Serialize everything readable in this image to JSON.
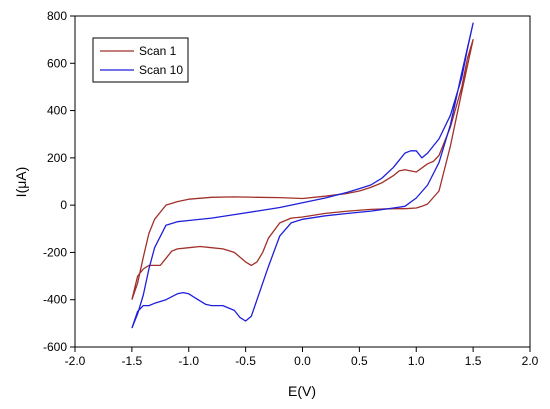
{
  "chart_data": {
    "type": "line",
    "title": "",
    "xlabel": "E(V)",
    "ylabel": "I(μA)",
    "xlim": [
      -2.0,
      2.0
    ],
    "ylim": [
      -600,
      800
    ],
    "x_ticks": [
      -2.0,
      -1.5,
      -1.0,
      -0.5,
      0.0,
      0.5,
      1.0,
      1.5,
      2.0
    ],
    "x_tick_labels": [
      "-2.0",
      "-1.5",
      "-1.0",
      "-0.5",
      "0.0",
      "0.5",
      "1.0",
      "1.5",
      "2.0"
    ],
    "y_ticks": [
      -600,
      -400,
      -200,
      0,
      200,
      400,
      600,
      800
    ],
    "y_tick_labels": [
      "-600",
      "-400",
      "-200",
      "0",
      "200",
      "400",
      "600",
      "800"
    ],
    "grid": false,
    "legend_position": "top-left",
    "series": [
      {
        "name": "Scan 1",
        "color": "#a0302a",
        "x": [
          -1.5,
          -1.45,
          -1.4,
          -1.35,
          -1.3,
          -1.25,
          -1.2,
          -1.15,
          -1.1,
          -1.0,
          -0.9,
          -0.8,
          -0.7,
          -0.6,
          -0.5,
          -0.45,
          -0.4,
          -0.35,
          -0.3,
          -0.2,
          -0.1,
          0.0,
          0.2,
          0.4,
          0.6,
          0.8,
          0.9,
          1.0,
          1.05,
          1.1,
          1.2,
          1.3,
          1.4,
          1.5,
          1.45,
          1.4,
          1.3,
          1.2,
          1.15,
          1.1,
          1.0,
          0.9,
          0.85,
          0.8,
          0.7,
          0.6,
          0.5,
          0.4,
          0.2,
          0.0,
          -0.2,
          -0.4,
          -0.6,
          -0.8,
          -1.0,
          -1.1,
          -1.2,
          -1.3,
          -1.35,
          -1.4,
          -1.45,
          -1.5
        ],
        "y": [
          -400,
          -300,
          -270,
          -255,
          -255,
          -255,
          -225,
          -195,
          -185,
          -180,
          -175,
          -180,
          -185,
          -200,
          -240,
          -255,
          -240,
          -200,
          -140,
          -75,
          -55,
          -50,
          -35,
          -25,
          -18,
          -15,
          -15,
          -12,
          -5,
          5,
          60,
          250,
          480,
          700,
          620,
          500,
          330,
          210,
          185,
          175,
          140,
          150,
          145,
          125,
          95,
          75,
          60,
          50,
          38,
          28,
          32,
          33,
          35,
          33,
          25,
          15,
          0,
          -60,
          -120,
          -220,
          -330,
          -400
        ]
      },
      {
        "name": "Scan 10",
        "color": "#1f1fdc",
        "x": [
          -1.5,
          -1.45,
          -1.4,
          -1.35,
          -1.3,
          -1.2,
          -1.1,
          -1.05,
          -1.0,
          -0.95,
          -0.9,
          -0.85,
          -0.8,
          -0.7,
          -0.6,
          -0.55,
          -0.5,
          -0.45,
          -0.4,
          -0.3,
          -0.2,
          -0.1,
          0.0,
          0.2,
          0.4,
          0.6,
          0.8,
          0.9,
          1.0,
          1.1,
          1.2,
          1.3,
          1.4,
          1.5,
          1.45,
          1.4,
          1.3,
          1.2,
          1.15,
          1.1,
          1.05,
          1.0,
          0.95,
          0.9,
          0.85,
          0.8,
          0.7,
          0.6,
          0.5,
          0.4,
          0.2,
          0.0,
          -0.2,
          -0.4,
          -0.6,
          -0.8,
          -1.0,
          -1.1,
          -1.2,
          -1.3,
          -1.35,
          -1.4,
          -1.45,
          -1.5
        ],
        "y": [
          -520,
          -450,
          -425,
          -425,
          -415,
          -400,
          -375,
          -370,
          -375,
          -390,
          -405,
          -420,
          -425,
          -425,
          -445,
          -475,
          -490,
          -470,
          -400,
          -260,
          -130,
          -75,
          -60,
          -45,
          -35,
          -25,
          -12,
          -5,
          30,
          85,
          180,
          340,
          560,
          770,
          660,
          540,
          380,
          280,
          250,
          220,
          200,
          230,
          230,
          220,
          190,
          160,
          115,
          85,
          70,
          55,
          30,
          10,
          -10,
          -25,
          -40,
          -55,
          -65,
          -70,
          -85,
          -180,
          -270,
          -380,
          -460,
          -520
        ]
      }
    ]
  }
}
